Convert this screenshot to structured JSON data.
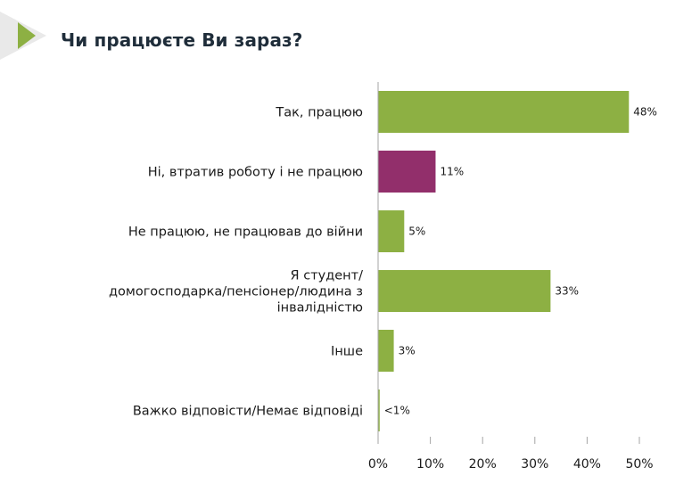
{
  "title": "Чи працюєте Ви зараз?",
  "colors": {
    "accent": "#8db043",
    "bar_default": "#8db043",
    "bar_highlight": "#922f6b",
    "axis": "#a6a6a6",
    "title": "#1f2d3a"
  },
  "icons": {
    "header": "chevron-right-icon"
  },
  "chart_data": {
    "type": "bar",
    "orientation": "horizontal",
    "categories": [
      [
        "Так, працюю"
      ],
      [
        "Ні, втратив роботу і не працюю"
      ],
      [
        "Не працюю, не працював до війни"
      ],
      [
        "Я студент/",
        "домогосподарка/пенсіонер/людина з",
        "інвалідністю"
      ],
      [
        "Інше"
      ],
      [
        "Важко відповісти/Немає відповіді"
      ]
    ],
    "values": [
      48,
      11,
      5,
      33,
      3,
      0.3
    ],
    "value_labels": [
      "48%",
      "11%",
      "5%",
      "33%",
      "3%",
      "<1%"
    ],
    "highlight_index": 1,
    "xlim": [
      0,
      50
    ],
    "xticks": [
      0,
      10,
      20,
      30,
      40,
      50
    ],
    "xtick_labels": [
      "0%",
      "10%",
      "20%",
      "30%",
      "40%",
      "50%"
    ],
    "grid": false,
    "legend": "none"
  }
}
